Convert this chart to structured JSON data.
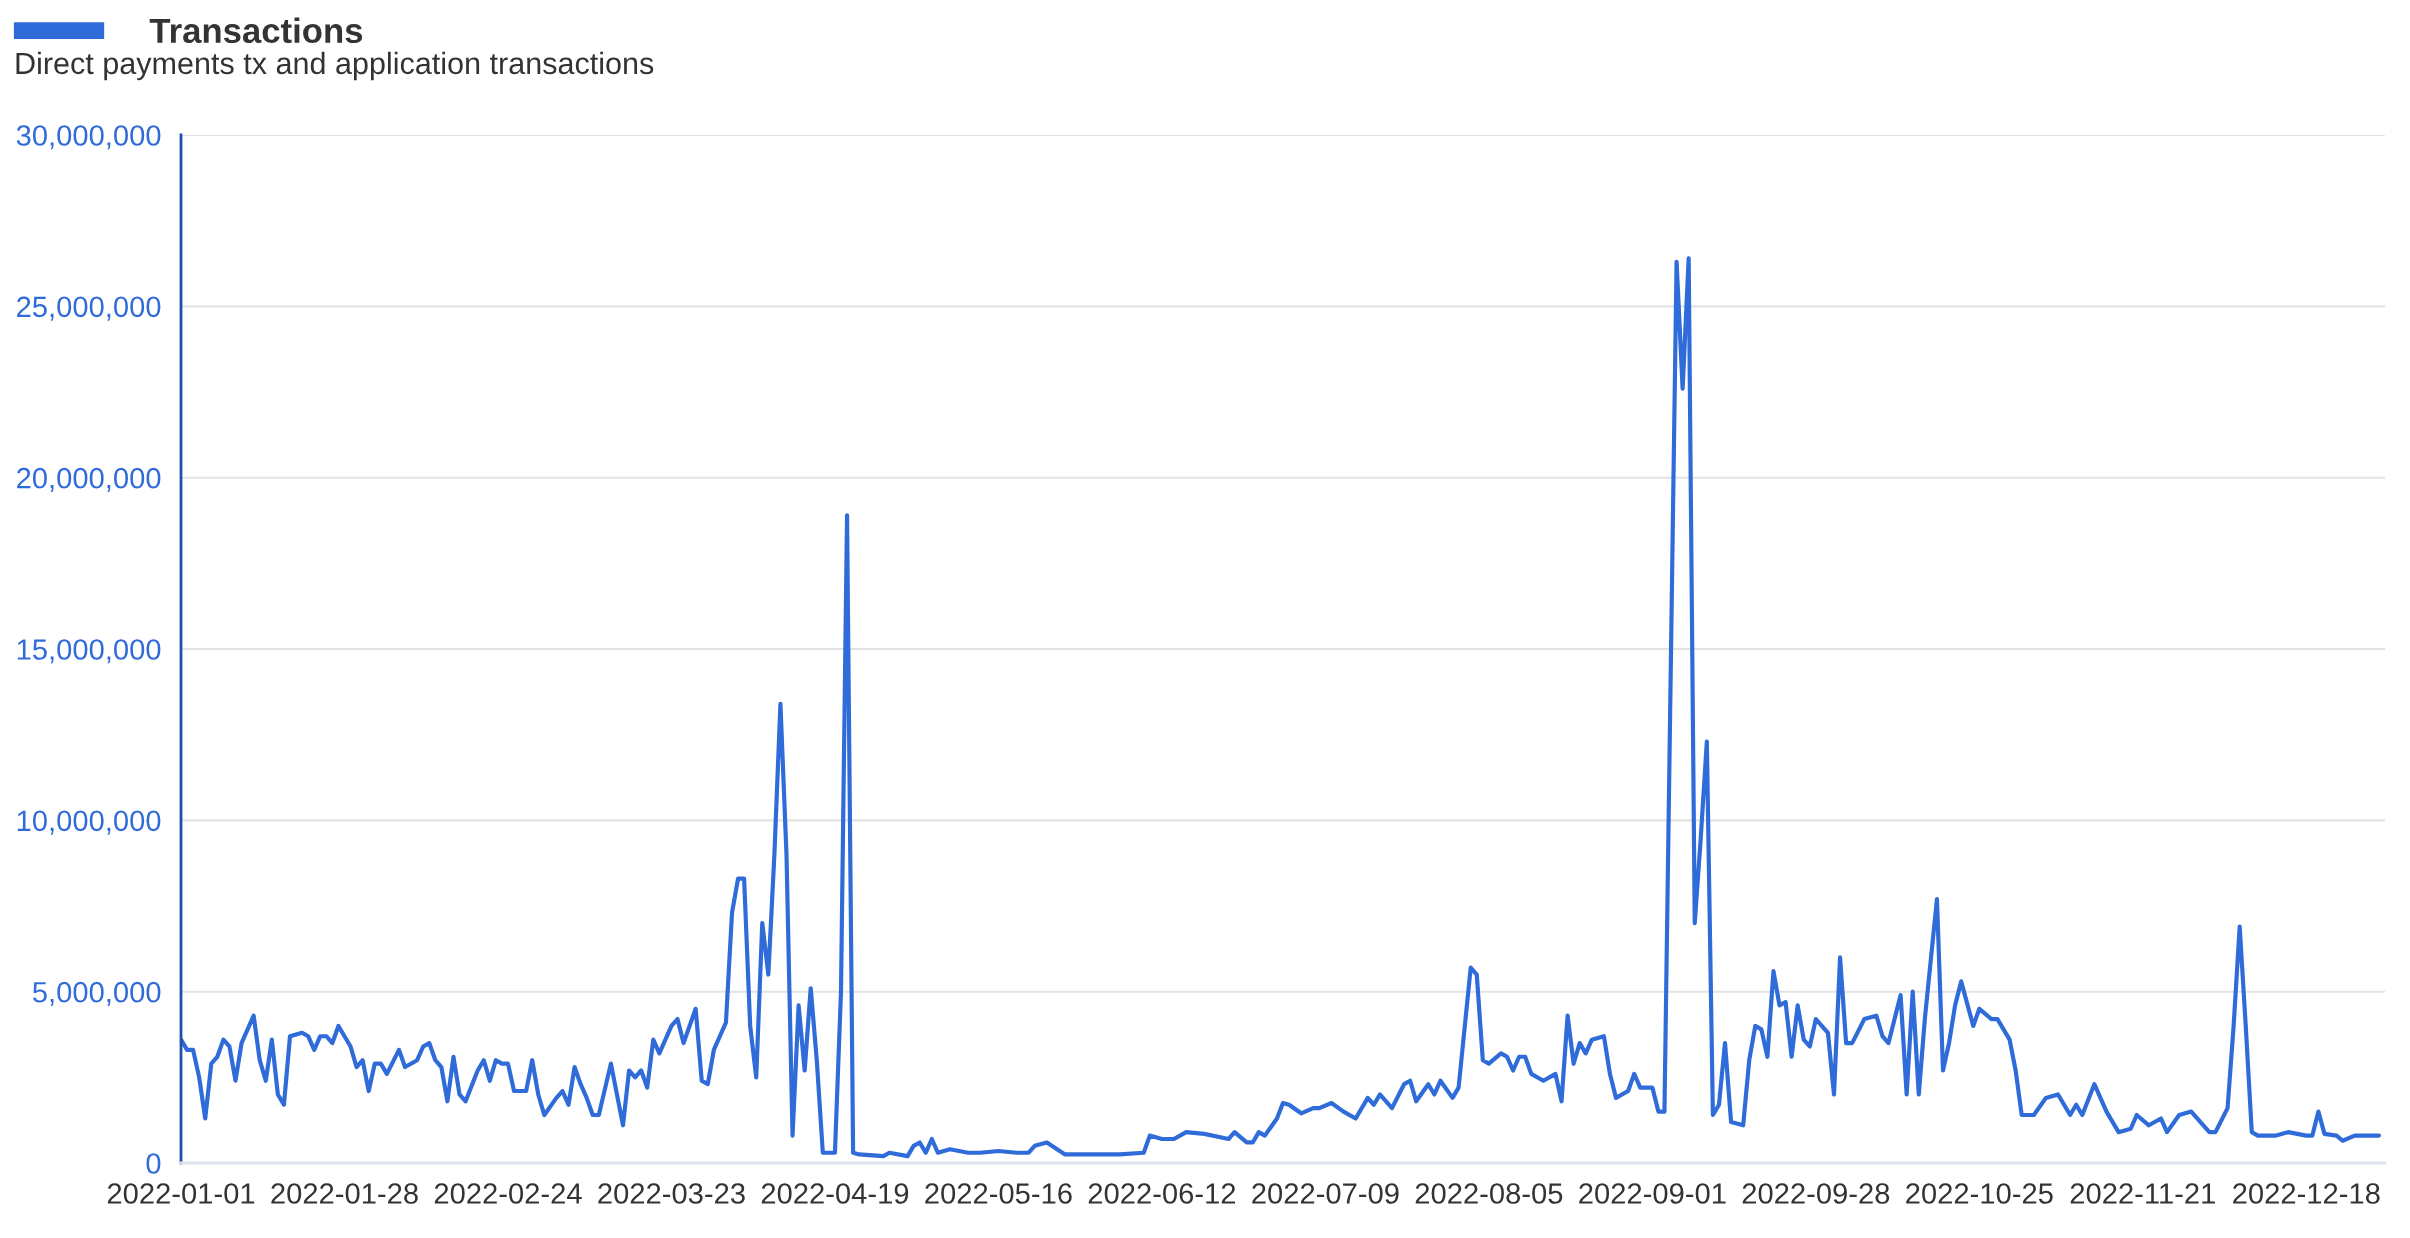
{
  "chart_data": {
    "type": "line",
    "subtitle": "Direct payments tx and application transactions",
    "x": [
      "2022-01-01",
      "2022-01-02",
      "2022-01-03",
      "2022-01-04",
      "2022-01-05",
      "2022-01-06",
      "2022-01-07",
      "2022-01-08",
      "2022-01-09",
      "2022-01-10",
      "2022-01-11",
      "2022-01-13",
      "2022-01-14",
      "2022-01-15",
      "2022-01-16",
      "2022-01-17",
      "2022-01-18",
      "2022-01-19",
      "2022-01-21",
      "2022-01-22",
      "2022-01-23",
      "2022-01-24",
      "2022-01-25",
      "2022-01-26",
      "2022-01-27",
      "2022-01-29",
      "2022-01-30",
      "2022-01-31",
      "2022-02-01",
      "2022-02-02",
      "2022-02-03",
      "2022-02-04",
      "2022-02-06",
      "2022-02-07",
      "2022-02-09",
      "2022-02-10",
      "2022-02-11",
      "2022-02-12",
      "2022-02-13",
      "2022-02-14",
      "2022-02-15",
      "2022-02-16",
      "2022-02-17",
      "2022-02-19",
      "2022-02-20",
      "2022-02-21",
      "2022-02-22",
      "2022-02-23",
      "2022-02-24",
      "2022-02-25",
      "2022-02-26",
      "2022-02-27",
      "2022-02-28",
      "2022-03-01",
      "2022-03-02",
      "2022-03-04",
      "2022-03-05",
      "2022-03-06",
      "2022-03-07",
      "2022-03-08",
      "2022-03-09",
      "2022-03-10",
      "2022-03-11",
      "2022-03-13",
      "2022-03-15",
      "2022-03-16",
      "2022-03-17",
      "2022-03-18",
      "2022-03-19",
      "2022-03-20",
      "2022-03-21",
      "2022-03-23",
      "2022-03-24",
      "2022-03-25",
      "2022-03-27",
      "2022-03-28",
      "2022-03-29",
      "2022-03-30",
      "2022-04-01",
      "2022-04-02",
      "2022-04-03",
      "2022-04-04",
      "2022-04-05",
      "2022-04-06",
      "2022-04-07",
      "2022-04-08",
      "2022-04-09",
      "2022-04-10",
      "2022-04-11",
      "2022-04-12",
      "2022-04-13",
      "2022-04-14",
      "2022-04-15",
      "2022-04-16",
      "2022-04-17",
      "2022-04-19",
      "2022-04-20",
      "2022-04-21",
      "2022-04-22",
      "2022-04-23",
      "2022-04-27",
      "2022-04-28",
      "2022-05-01",
      "2022-05-02",
      "2022-05-03",
      "2022-05-04",
      "2022-05-05",
      "2022-05-06",
      "2022-05-08",
      "2022-05-11",
      "2022-05-13",
      "2022-05-16",
      "2022-05-19",
      "2022-05-21",
      "2022-05-22",
      "2022-05-24",
      "2022-05-27",
      "2022-05-31",
      "2022-06-05",
      "2022-06-09",
      "2022-06-10",
      "2022-06-12",
      "2022-06-14",
      "2022-06-16",
      "2022-06-19",
      "2022-06-23",
      "2022-06-24",
      "2022-06-26",
      "2022-06-27",
      "2022-06-28",
      "2022-06-29",
      "2022-07-01",
      "2022-07-02",
      "2022-07-03",
      "2022-07-05",
      "2022-07-07",
      "2022-07-08",
      "2022-07-10",
      "2022-07-12",
      "2022-07-14",
      "2022-07-16",
      "2022-07-17",
      "2022-07-18",
      "2022-07-20",
      "2022-07-22",
      "2022-07-23",
      "2022-07-24",
      "2022-07-26",
      "2022-07-27",
      "2022-07-28",
      "2022-07-30",
      "2022-07-31",
      "2022-08-02",
      "2022-08-03",
      "2022-08-04",
      "2022-08-05",
      "2022-08-07",
      "2022-08-08",
      "2022-08-09",
      "2022-08-10",
      "2022-08-11",
      "2022-08-12",
      "2022-08-14",
      "2022-08-16",
      "2022-08-17",
      "2022-08-18",
      "2022-08-19",
      "2022-08-20",
      "2022-08-21",
      "2022-08-22",
      "2022-08-24",
      "2022-08-25",
      "2022-08-26",
      "2022-08-28",
      "2022-08-29",
      "2022-08-30",
      "2022-09-01",
      "2022-09-02",
      "2022-09-03",
      "2022-09-05",
      "2022-09-06",
      "2022-09-07",
      "2022-09-08",
      "2022-09-09",
      "2022-09-10",
      "2022-09-11",
      "2022-09-12",
      "2022-09-13",
      "2022-09-14",
      "2022-09-16",
      "2022-09-17",
      "2022-09-18",
      "2022-09-19",
      "2022-09-20",
      "2022-09-21",
      "2022-09-22",
      "2022-09-23",
      "2022-09-24",
      "2022-09-25",
      "2022-09-26",
      "2022-09-27",
      "2022-09-28",
      "2022-09-30",
      "2022-10-01",
      "2022-10-02",
      "2022-10-03",
      "2022-10-04",
      "2022-10-06",
      "2022-10-08",
      "2022-10-09",
      "2022-10-10",
      "2022-10-12",
      "2022-10-13",
      "2022-10-14",
      "2022-10-15",
      "2022-10-16",
      "2022-10-18",
      "2022-10-19",
      "2022-10-20",
      "2022-10-21",
      "2022-10-22",
      "2022-10-24",
      "2022-10-25",
      "2022-10-27",
      "2022-10-28",
      "2022-10-30",
      "2022-10-31",
      "2022-11-01",
      "2022-11-03",
      "2022-11-05",
      "2022-11-07",
      "2022-11-09",
      "2022-11-10",
      "2022-11-11",
      "2022-11-13",
      "2022-11-15",
      "2022-11-16",
      "2022-11-17",
      "2022-11-19",
      "2022-11-20",
      "2022-11-22",
      "2022-11-24",
      "2022-11-25",
      "2022-11-27",
      "2022-11-29",
      "2022-12-01",
      "2022-12-02",
      "2022-12-03",
      "2022-12-05",
      "2022-12-06",
      "2022-12-07",
      "2022-12-08",
      "2022-12-09",
      "2022-12-10",
      "2022-12-13",
      "2022-12-15",
      "2022-12-18",
      "2022-12-19",
      "2022-12-20",
      "2022-12-21",
      "2022-12-23",
      "2022-12-24",
      "2022-12-26",
      "2022-12-30"
    ],
    "series": [
      {
        "name": "Transactions",
        "color": "#2f6bd9",
        "values": [
          3600000,
          3300000,
          3300000,
          2500000,
          1300000,
          2900000,
          3100000,
          3600000,
          3400000,
          2400000,
          3500000,
          4300000,
          3000000,
          2400000,
          3600000,
          2000000,
          1700000,
          3700000,
          3800000,
          3700000,
          3300000,
          3700000,
          3700000,
          3500000,
          4000000,
          3400000,
          2800000,
          3000000,
          2100000,
          2900000,
          2900000,
          2600000,
          3300000,
          2800000,
          3000000,
          3400000,
          3500000,
          3000000,
          2800000,
          1800000,
          3100000,
          2000000,
          1800000,
          2700000,
          3000000,
          2400000,
          3000000,
          2900000,
          2900000,
          2100000,
          2100000,
          2100000,
          3000000,
          2000000,
          1400000,
          1900000,
          2100000,
          1700000,
          2800000,
          2300000,
          1900000,
          1400000,
          1400000,
          2900000,
          1100000,
          2700000,
          2500000,
          2700000,
          2200000,
          3600000,
          3200000,
          4000000,
          4200000,
          3500000,
          4500000,
          2400000,
          2300000,
          3300000,
          4100000,
          7300000,
          8300000,
          8300000,
          4000000,
          2500000,
          7000000,
          5500000,
          9000000,
          13400000,
          9000000,
          800000,
          4600000,
          2700000,
          5100000,
          3000000,
          300000,
          300000,
          5000000,
          18900000,
          300000,
          250000,
          200000,
          300000,
          200000,
          500000,
          600000,
          300000,
          700000,
          300000,
          400000,
          300000,
          300000,
          350000,
          300000,
          300000,
          500000,
          600000,
          250000,
          250000,
          250000,
          300000,
          800000,
          700000,
          700000,
          900000,
          850000,
          700000,
          900000,
          600000,
          600000,
          900000,
          800000,
          1300000,
          1750000,
          1700000,
          1450000,
          1600000,
          1600000,
          1750000,
          1500000,
          1300000,
          1900000,
          1700000,
          2000000,
          1600000,
          2300000,
          2400000,
          1800000,
          2300000,
          2000000,
          2400000,
          1900000,
          2200000,
          5700000,
          5500000,
          3000000,
          2900000,
          3200000,
          3100000,
          2700000,
          3100000,
          3100000,
          2600000,
          2400000,
          2600000,
          1800000,
          4300000,
          2900000,
          3500000,
          3200000,
          3600000,
          3700000,
          2600000,
          1900000,
          2100000,
          2600000,
          2200000,
          2200000,
          1500000,
          1500000,
          26300000,
          22600000,
          26400000,
          7000000,
          9500000,
          12300000,
          1400000,
          1700000,
          3500000,
          1200000,
          1100000,
          3000000,
          4000000,
          3900000,
          3100000,
          5600000,
          4600000,
          4700000,
          3100000,
          4600000,
          3600000,
          3400000,
          4200000,
          3800000,
          2000000,
          6000000,
          3500000,
          3500000,
          4200000,
          4300000,
          3700000,
          3500000,
          4900000,
          2000000,
          5000000,
          2000000,
          4200000,
          7700000,
          2700000,
          3500000,
          4600000,
          5300000,
          4000000,
          4500000,
          4200000,
          4200000,
          3600000,
          2700000,
          1400000,
          1400000,
          1900000,
          2000000,
          1400000,
          1700000,
          1400000,
          2300000,
          1500000,
          1200000,
          900000,
          1000000,
          1400000,
          1100000,
          1300000,
          900000,
          1400000,
          1500000,
          1100000,
          900000,
          900000,
          1600000,
          4000000,
          6900000,
          4000000,
          900000,
          800000,
          800000,
          900000,
          800000,
          800000,
          1500000,
          850000,
          800000,
          650000,
          800000,
          800000
        ]
      }
    ],
    "xlim": [
      "2022-01-01",
      "2022-12-31"
    ],
    "xticks": [
      {
        "value": "2022-01-01",
        "label": "2022-01-01"
      },
      {
        "value": "2022-01-28",
        "label": "2022-01-28"
      },
      {
        "value": "2022-02-24",
        "label": "2022-02-24"
      },
      {
        "value": "2022-03-23",
        "label": "2022-03-23"
      },
      {
        "value": "2022-04-19",
        "label": "2022-04-19"
      },
      {
        "value": "2022-05-16",
        "label": "2022-05-16"
      },
      {
        "value": "2022-06-12",
        "label": "2022-06-12"
      },
      {
        "value": "2022-07-09",
        "label": "2022-07-09"
      },
      {
        "value": "2022-08-05",
        "label": "2022-08-05"
      },
      {
        "value": "2022-09-01",
        "label": "2022-09-01"
      },
      {
        "value": "2022-09-28",
        "label": "2022-09-28"
      },
      {
        "value": "2022-10-25",
        "label": "2022-10-25"
      },
      {
        "value": "2022-11-21",
        "label": "2022-11-21"
      },
      {
        "value": "2022-12-18",
        "label": "2022-12-18"
      }
    ],
    "ylim": [
      0,
      30000000
    ],
    "yticks": [
      0,
      {
        "value": 5000000,
        "label": "5,000,000"
      },
      {
        "value": 10000000,
        "label": "10,000,000"
      },
      {
        "value": 15000000,
        "label": "15,000,000"
      },
      {
        "value": 20000000,
        "label": "20,000,000"
      },
      {
        "value": 25000000,
        "label": "25,000,000"
      },
      {
        "value": 30000000,
        "label": "30,000,000"
      }
    ],
    "grid": "y",
    "legend": "top left",
    "marker": "none",
    "line_style": "solid"
  }
}
